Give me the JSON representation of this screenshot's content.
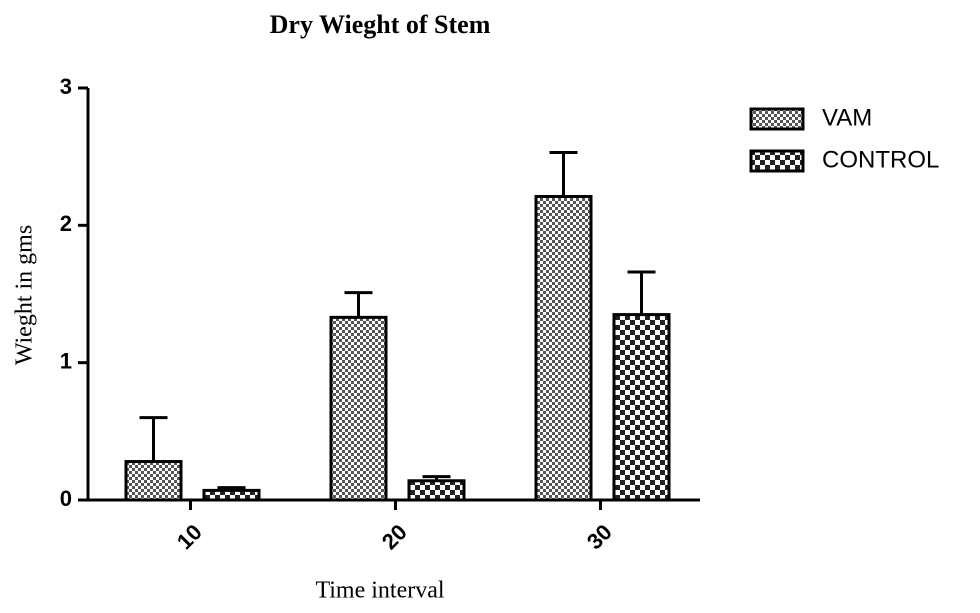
{
  "chart_data": {
    "type": "bar",
    "title": "Dry Wieght of Stem",
    "x_label": "Time interval",
    "y_label": "Wieght in gms",
    "categories": [
      "10",
      "20",
      "30"
    ],
    "series": [
      {
        "name": "VAM",
        "color": "#555555",
        "values": [
          0.28,
          1.33,
          2.21
        ],
        "errors": [
          0.32,
          0.18,
          0.32
        ]
      },
      {
        "name": "CONTROL",
        "color": "#222222",
        "values": [
          0.07,
          0.14,
          1.35
        ],
        "errors": [
          0.02,
          0.03,
          0.31
        ]
      }
    ],
    "ylim": [
      0,
      3
    ],
    "yticks": [
      0,
      1,
      2,
      3
    ],
    "legend": "upper right"
  }
}
